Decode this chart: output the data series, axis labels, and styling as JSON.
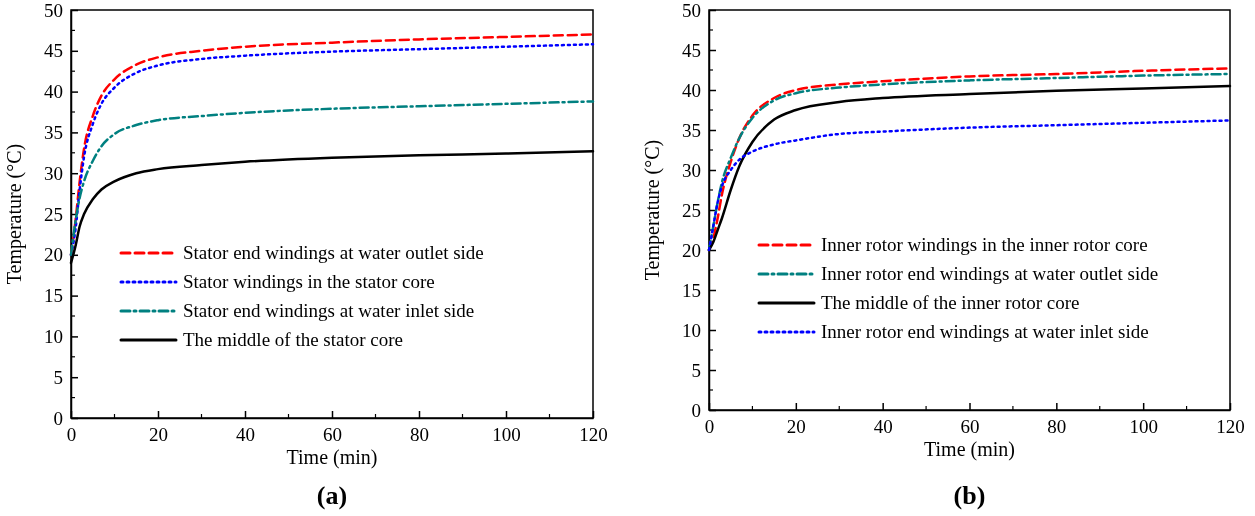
{
  "chart_data": [
    {
      "type": "line",
      "title": "(a)",
      "xlabel": "Time (min)",
      "ylabel": "Temperature (°C)",
      "xlim": [
        0,
        120
      ],
      "xticks": [
        0,
        20,
        40,
        60,
        80,
        100,
        120
      ],
      "ylim": [
        0,
        50
      ],
      "yticks": [
        0,
        5,
        10,
        15,
        20,
        25,
        30,
        35,
        40,
        45,
        50
      ],
      "legend": "bottom left",
      "x": [
        0,
        1,
        2,
        3,
        5,
        7,
        10,
        15,
        20,
        30,
        40,
        60,
        80,
        100,
        120
      ],
      "series": [
        {
          "name": "Stator end windings at water outlet side",
          "color": "#ff0000",
          "line_style": "dashed",
          "values": [
            20,
            24,
            29,
            33,
            37,
            39.5,
            41.5,
            43.3,
            44.2,
            45,
            45.5,
            46,
            46.4,
            46.7,
            47
          ]
        },
        {
          "name": "Stator windings in the stator core",
          "color": "#0000ff",
          "line_style": "dotted",
          "values": [
            20,
            23,
            28,
            32,
            36,
            38.5,
            40.5,
            42.3,
            43.2,
            44,
            44.4,
            44.9,
            45.2,
            45.5,
            45.8
          ]
        },
        {
          "name": "Stator end windings at water inlet side",
          "color": "#008080",
          "line_style": "dashdot",
          "values": [
            20,
            24,
            27,
            29,
            31.5,
            33.3,
            34.8,
            35.9,
            36.5,
            37,
            37.4,
            37.9,
            38.2,
            38.5,
            38.8
          ]
        },
        {
          "name": "The middle of the stator core",
          "color": "#000000",
          "line_style": "solid",
          "values": [
            19,
            21,
            23.5,
            25,
            26.8,
            28,
            29,
            30,
            30.5,
            31,
            31.4,
            31.9,
            32.2,
            32.4,
            32.7
          ]
        }
      ]
    },
    {
      "type": "line",
      "title": "(b)",
      "xlabel": "Time (min)",
      "ylabel": "Temperature (°C)",
      "xlim": [
        0,
        120
      ],
      "xticks": [
        0,
        20,
        40,
        60,
        80,
        100,
        120
      ],
      "ylim": [
        0,
        50
      ],
      "yticks": [
        0,
        5,
        10,
        15,
        20,
        25,
        30,
        35,
        40,
        45,
        50
      ],
      "legend": "bottom left",
      "x": [
        0,
        1,
        2,
        3,
        5,
        7,
        10,
        15,
        20,
        30,
        40,
        60,
        80,
        100,
        120
      ],
      "series": [
        {
          "name": "Inner rotor windings in the inner rotor core",
          "color": "#ff0000",
          "line_style": "dashed",
          "values": [
            20,
            21.5,
            24,
            27,
            31,
            34,
            36.8,
            39,
            40,
            40.7,
            41.1,
            41.7,
            42,
            42.4,
            42.7
          ]
        },
        {
          "name": "Inner rotor end windings at water outlet side",
          "color": "#008080",
          "line_style": "dashdot",
          "values": [
            20,
            23,
            26,
            28.5,
            31.5,
            34,
            36.5,
            38.7,
            39.6,
            40.3,
            40.7,
            41.2,
            41.5,
            41.8,
            42
          ]
        },
        {
          "name": "The middle of the inner rotor core",
          "color": "#000000",
          "line_style": "solid",
          "values": [
            20,
            21,
            22.5,
            24,
            27.5,
            30.5,
            33.5,
            36.3,
            37.5,
            38.5,
            39,
            39.5,
            39.9,
            40.2,
            40.5
          ]
        },
        {
          "name": "Inner rotor end windings at water inlet side",
          "color": "#0000ff",
          "line_style": "dotted",
          "values": [
            20,
            23,
            26,
            28,
            30,
            31.3,
            32.3,
            33.2,
            33.7,
            34.5,
            34.8,
            35.3,
            35.6,
            35.9,
            36.2
          ]
        }
      ]
    }
  ]
}
